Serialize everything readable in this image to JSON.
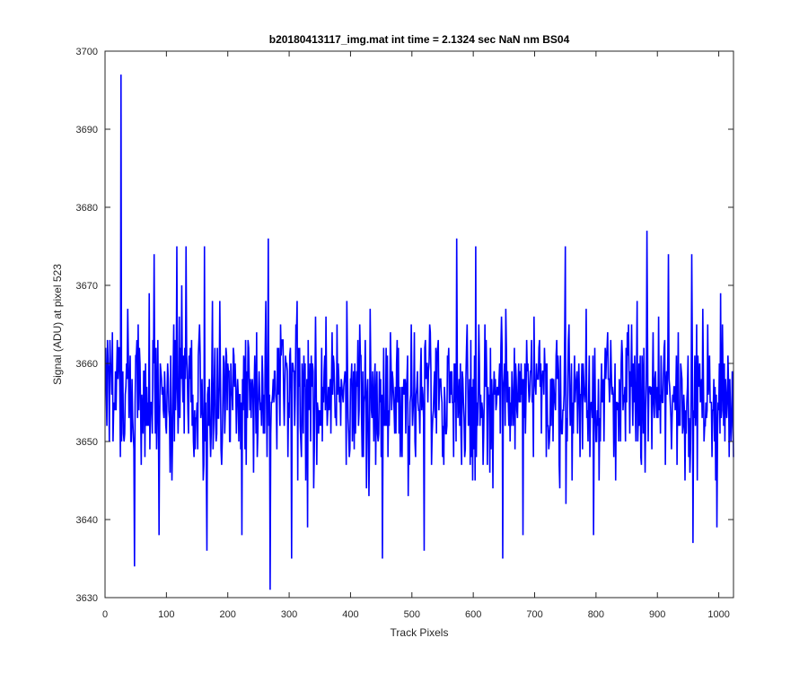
{
  "chart_data": {
    "type": "line",
    "title": "b20180413117_img.mat int time = 2.1324 sec  NaN nm BS04",
    "xlabel": "Track Pixels",
    "ylabel": "Signal (ADU) at pixel 523",
    "xlim": [
      0,
      1024
    ],
    "ylim": [
      3630,
      3700
    ],
    "xticks": [
      0,
      100,
      200,
      300,
      400,
      500,
      600,
      700,
      800,
      900,
      1000
    ],
    "yticks": [
      3630,
      3640,
      3650,
      3660,
      3670,
      3680,
      3690,
      3700
    ],
    "grid": false,
    "box": true,
    "series": [
      {
        "color": "#0000ff",
        "x_start": 1,
        "x_step": 1,
        "base_level": 3656,
        "spikes": [
          {
            "x": 26,
            "y": 3697
          },
          {
            "x": 48,
            "y": 3634
          },
          {
            "x": 269,
            "y": 3631
          },
          {
            "x": 266,
            "y": 3676
          },
          {
            "x": 883,
            "y": 3677
          },
          {
            "x": 166,
            "y": 3636
          },
          {
            "x": 452,
            "y": 3635
          },
          {
            "x": 648,
            "y": 3635
          },
          {
            "x": 958,
            "y": 3637
          },
          {
            "x": 681,
            "y": 3638
          },
          {
            "x": 304,
            "y": 3635
          },
          {
            "x": 117,
            "y": 3675
          },
          {
            "x": 132,
            "y": 3675
          },
          {
            "x": 162,
            "y": 3675
          },
          {
            "x": 573,
            "y": 3676
          },
          {
            "x": 956,
            "y": 3674
          },
          {
            "x": 750,
            "y": 3675
          },
          {
            "x": 604,
            "y": 3675
          },
          {
            "x": 223,
            "y": 3638
          },
          {
            "x": 796,
            "y": 3638
          },
          {
            "x": 997,
            "y": 3639
          },
          {
            "x": 80,
            "y": 3674
          },
          {
            "x": 918,
            "y": 3674
          },
          {
            "x": 520,
            "y": 3636
          },
          {
            "x": 88,
            "y": 3638
          },
          {
            "x": 330,
            "y": 3639
          }
        ]
      }
    ]
  }
}
